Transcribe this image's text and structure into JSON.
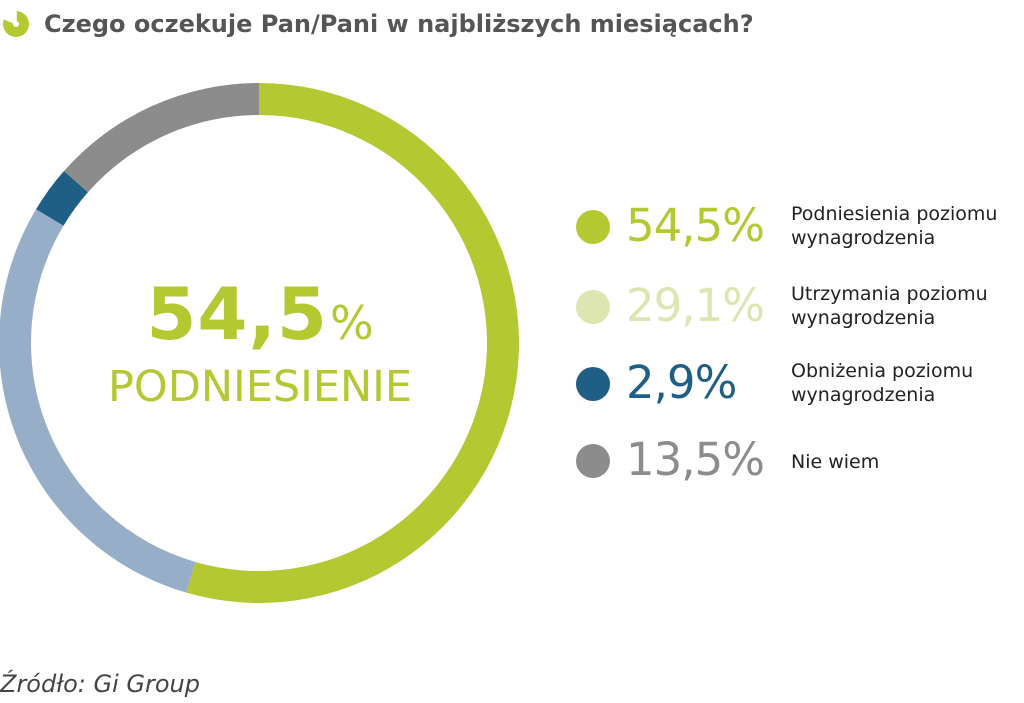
{
  "header": {
    "title": "Czego oczekuje Pan/Pani w najbliższych miesiącach?",
    "icon": "pie-chart-icon"
  },
  "center": {
    "value": "54,5",
    "percent_sign": "%",
    "label": "PODNIESIENIE"
  },
  "legend": [
    {
      "value": "54,5%",
      "label": "Podniesienia poziomu\nwynagrodzenia",
      "color": "#b4c832"
    },
    {
      "value": "29,1%",
      "label": "Utrzymania poziomu\nwynagrodzenia",
      "color": "#dde6b0"
    },
    {
      "value": "2,9%",
      "label": "Obniżenia poziomu\nwynagrodzenia",
      "color": "#1f5f85"
    },
    {
      "value": "13,5%",
      "label": "Nie wiem",
      "color": "#8c8c8c"
    }
  ],
  "source": "Źródło: Gi Group",
  "chart_data": {
    "type": "pie",
    "style": "donut",
    "title": "Czego oczekuje Pan/Pani w najbliższych miesiącach?",
    "categories": [
      "Podniesienia poziomu wynagrodzenia",
      "Utrzymania poziomu wynagrodzenia",
      "Obniżenia poziomu wynagrodzenia",
      "Nie wiem"
    ],
    "values": [
      54.5,
      29.1,
      2.9,
      13.5
    ],
    "unit": "%",
    "slice_colors": [
      "#b4c832",
      "#97aec8",
      "#1f5f85",
      "#8c8c8c"
    ],
    "start": "top",
    "direction": "clockwise",
    "legend_position": "right"
  }
}
